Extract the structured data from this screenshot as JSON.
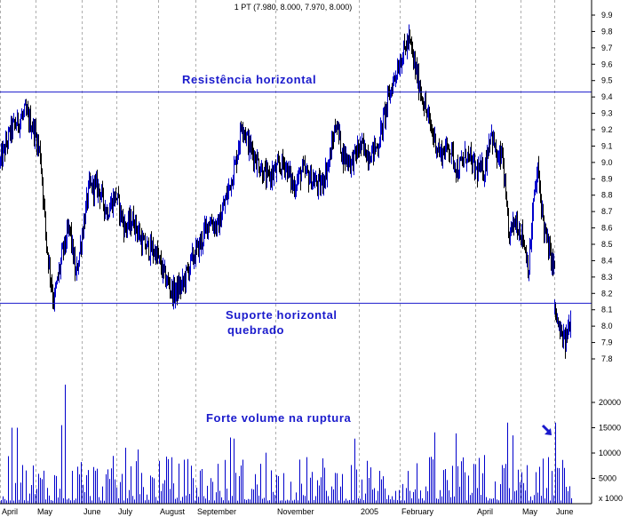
{
  "chart_data": [
    {
      "type": "ohlc",
      "title": "1 PT (7.980, 8.000, 7.970, 8.000)",
      "ylim": [
        7.75,
        9.9
      ],
      "yticks": [
        7.8,
        7.9,
        8.0,
        8.1,
        8.2,
        8.3,
        8.4,
        8.5,
        8.6,
        8.7,
        8.8,
        8.9,
        9.0,
        9.1,
        9.2,
        9.3,
        9.4,
        9.5,
        9.6,
        9.7,
        9.8,
        9.9
      ],
      "x_labels": [
        "April",
        "May",
        "June",
        "July",
        "August",
        "September",
        "November",
        "2005",
        "February",
        "April",
        "May",
        "June"
      ],
      "grid": true,
      "series_colors": {
        "up": "#0000cc",
        "down": "#000000"
      },
      "price_path": [
        [
          0,
          9.0
        ],
        [
          12,
          9.2
        ],
        [
          28,
          9.3
        ],
        [
          38,
          9.2
        ],
        [
          45,
          9.05
        ],
        [
          52,
          8.5
        ],
        [
          60,
          8.15
        ],
        [
          70,
          8.45
        ],
        [
          78,
          8.6
        ],
        [
          85,
          8.3
        ],
        [
          93,
          8.6
        ],
        [
          100,
          8.85
        ],
        [
          110,
          8.85
        ],
        [
          120,
          8.7
        ],
        [
          130,
          8.8
        ],
        [
          140,
          8.6
        ],
        [
          150,
          8.65
        ],
        [
          160,
          8.5
        ],
        [
          175,
          8.45
        ],
        [
          185,
          8.3
        ],
        [
          195,
          8.2
        ],
        [
          205,
          8.25
        ],
        [
          215,
          8.4
        ],
        [
          225,
          8.5
        ],
        [
          235,
          8.65
        ],
        [
          245,
          8.6
        ],
        [
          255,
          8.8
        ],
        [
          265,
          9.0
        ],
        [
          272,
          9.25
        ],
        [
          280,
          9.1
        ],
        [
          290,
          9.0
        ],
        [
          300,
          8.9
        ],
        [
          310,
          8.95
        ],
        [
          320,
          9.0
        ],
        [
          330,
          8.85
        ],
        [
          340,
          8.95
        ],
        [
          350,
          8.9
        ],
        [
          360,
          8.85
        ],
        [
          370,
          9.0
        ],
        [
          378,
          9.25
        ],
        [
          385,
          9.05
        ],
        [
          395,
          9.0
        ],
        [
          405,
          9.1
        ],
        [
          415,
          9.05
        ],
        [
          425,
          9.1
        ],
        [
          435,
          9.35
        ],
        [
          445,
          9.55
        ],
        [
          452,
          9.65
        ],
        [
          460,
          9.75
        ],
        [
          468,
          9.55
        ],
        [
          475,
          9.4
        ],
        [
          485,
          9.2
        ],
        [
          495,
          9.05
        ],
        [
          505,
          9.1
        ],
        [
          515,
          8.95
        ],
        [
          525,
          9.05
        ],
        [
          535,
          8.95
        ],
        [
          545,
          8.95
        ],
        [
          552,
          9.2
        ],
        [
          560,
          9.0
        ],
        [
          565,
          9.05
        ],
        [
          572,
          8.55
        ],
        [
          580,
          8.65
        ],
        [
          588,
          8.55
        ],
        [
          595,
          8.35
        ],
        [
          600,
          8.75
        ],
        [
          605,
          8.95
        ],
        [
          612,
          8.6
        ],
        [
          618,
          8.45
        ],
        [
          624,
          8.35
        ]
      ],
      "price_path_2": [
        [
          624,
          8.1
        ],
        [
          630,
          7.95
        ],
        [
          636,
          7.9
        ],
        [
          642,
          8.05
        ]
      ],
      "annotations": [
        {
          "text": "Resistência horizontal",
          "y": 9.43,
          "kind": "hline_label"
        },
        {
          "text": "Suporte horizontal",
          "kind": "label"
        },
        {
          "text": "quebrado",
          "kind": "label"
        },
        {
          "text": "Forte volume na ruptura",
          "kind": "label"
        }
      ],
      "hlines": [
        {
          "name": "resistance",
          "y": 9.43,
          "color": "#1a1acc"
        },
        {
          "name": "support",
          "y": 8.14,
          "color": "#1a1acc"
        }
      ]
    },
    {
      "type": "bar",
      "ylabel": "x 1000",
      "ylim": [
        0,
        25000
      ],
      "yticks": [
        5000,
        10000,
        15000,
        20000
      ],
      "highlight": {
        "x": 624,
        "value": 16000,
        "note": "arrow"
      }
    }
  ]
}
